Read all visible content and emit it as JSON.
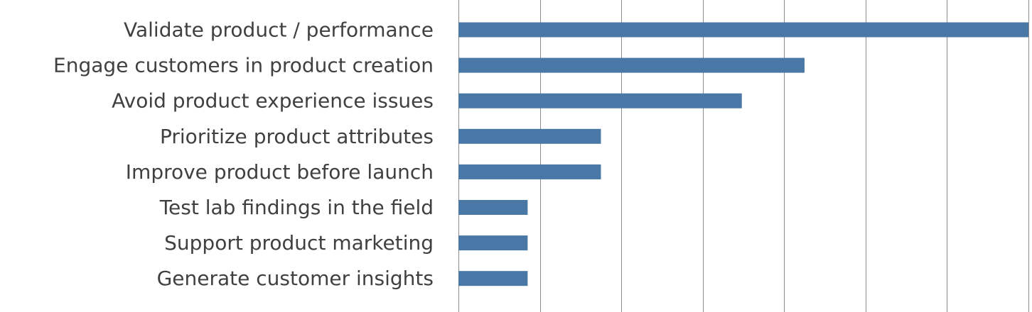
{
  "chart_data": {
    "type": "bar",
    "orientation": "horizontal",
    "categories": [
      "Validate product / performance",
      "Engage customers in product creation",
      "Avoid product experience issues",
      "Prioritize product attributes",
      "Improve product before launch",
      "Test lab findings in the field",
      "Support product marketing",
      "Generate customer insights"
    ],
    "values": [
      7,
      4.25,
      3.48,
      1.75,
      1.75,
      0.85,
      0.85,
      0.85
    ],
    "xlim": [
      0,
      7
    ],
    "x_gridlines": [
      0,
      1,
      2,
      3,
      4,
      5,
      6,
      7
    ],
    "grid": "vertical",
    "bar_color": "#4a78a6",
    "gridline_color": "#8c8c8c",
    "label_color": "#404040",
    "title": "",
    "xlabel": "",
    "ylabel": "",
    "legend": "none"
  }
}
